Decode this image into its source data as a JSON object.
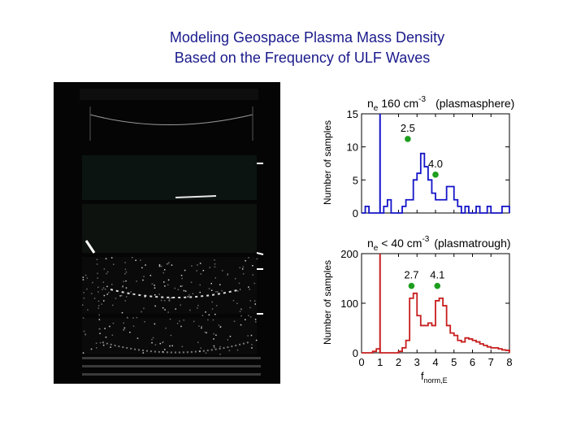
{
  "slide": {
    "title_line1": "Modeling Geospace Plasma Mass Density",
    "title_line2": "Based on the Frequency of ULF Waves"
  },
  "chart_data": [
    {
      "type": "bar",
      "style": "step",
      "color": "#1414c8",
      "title_main": "n",
      "title_sub": "e",
      "title_value": " 160 cm",
      "title_sup": "-3",
      "title_paren": "(plasmasphere)",
      "ylabel": "Number of samples",
      "ylim": [
        0,
        15
      ],
      "yticks": [
        0,
        5,
        10,
        15
      ],
      "xlim": [
        0,
        8
      ],
      "vline_x": 1.0,
      "bin_width": 0.2,
      "values": [
        0,
        1,
        0,
        0,
        0,
        0,
        1,
        2,
        0,
        0,
        0,
        1,
        2,
        2,
        5,
        6,
        9,
        7,
        5,
        3,
        2,
        2,
        2,
        4,
        4,
        2,
        1,
        0,
        1,
        0,
        0,
        1,
        0,
        0,
        1,
        0,
        0,
        0,
        1,
        1
      ],
      "markers": [
        {
          "x": 2.5,
          "y": 11.2,
          "label": "2.5"
        },
        {
          "x": 4.0,
          "y": 5.8,
          "label": "4.0"
        }
      ]
    },
    {
      "type": "bar",
      "style": "step",
      "color": "#c81e1e",
      "title_main": "n",
      "title_sub": "e",
      "title_value": " < 40 cm",
      "title_sup": "-3",
      "title_paren": "(plasmatrough)",
      "ylabel": "Number of samples",
      "xlabel_main": "f",
      "xlabel_sub": "norm,E",
      "ylim": [
        0,
        200
      ],
      "yticks": [
        0,
        100,
        200
      ],
      "xlim": [
        0,
        8
      ],
      "xticks": [
        0,
        1,
        2,
        3,
        4,
        5,
        6,
        7,
        8
      ],
      "vline_x": 1.0,
      "bin_width": 0.2,
      "values": [
        0,
        0,
        0,
        3,
        8,
        0,
        0,
        0,
        0,
        0,
        3,
        10,
        25,
        110,
        120,
        75,
        55,
        55,
        60,
        55,
        105,
        110,
        95,
        55,
        40,
        35,
        25,
        22,
        30,
        28,
        25,
        22,
        18,
        15,
        12,
        10,
        10,
        8,
        6,
        5
      ],
      "markers": [
        {
          "x": 2.7,
          "y": 135,
          "label": "2.7"
        },
        {
          "x": 4.1,
          "y": 135,
          "label": "4.1"
        }
      ]
    }
  ]
}
